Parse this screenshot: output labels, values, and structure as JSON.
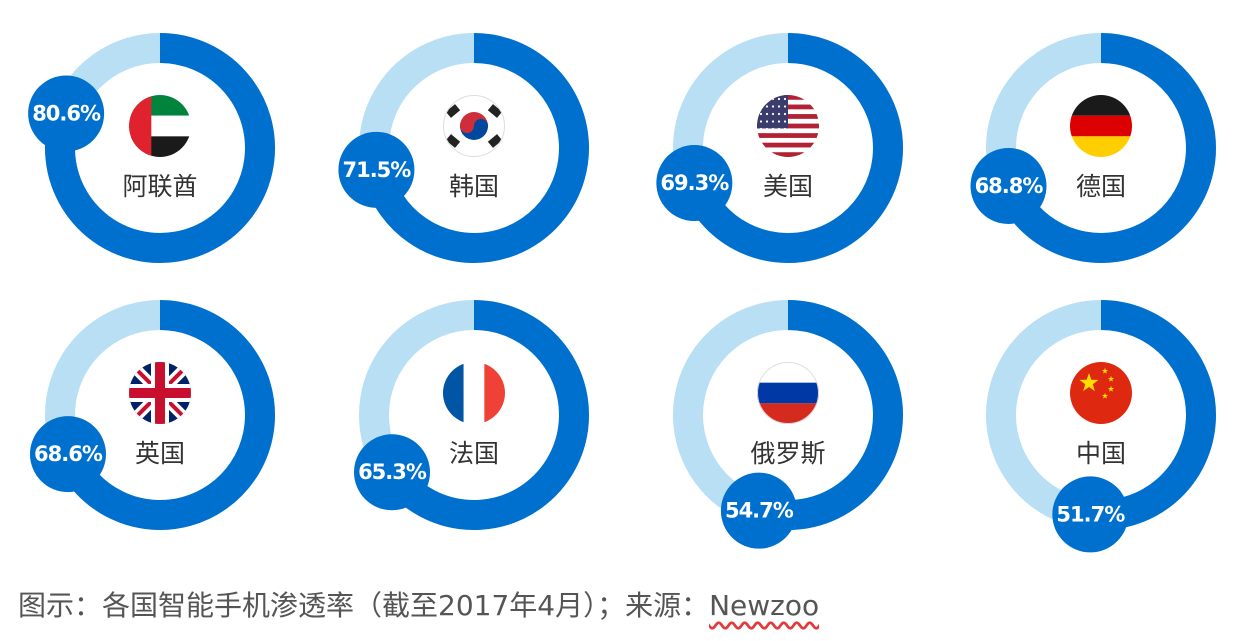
{
  "colors": {
    "accent": "#0070cf",
    "track": "#b9dff5",
    "text": "#333333"
  },
  "chart_data": {
    "type": "donut",
    "unit": "%",
    "categories": [
      "阿联酋",
      "韩国",
      "美国",
      "德国",
      "英国",
      "法国",
      "俄罗斯",
      "中国"
    ],
    "values": [
      80.6,
      71.5,
      69.3,
      68.8,
      68.6,
      65.3,
      54.7,
      51.7
    ],
    "value_labels": [
      "80.6%",
      "71.5%",
      "69.3%",
      "68.8%",
      "68.6%",
      "65.3%",
      "54.7%",
      "51.7%"
    ],
    "flags": [
      "uae-flag-icon",
      "south-korea-flag-icon",
      "usa-flag-icon",
      "germany-flag-icon",
      "uk-flag-icon",
      "france-flag-icon",
      "russia-flag-icon",
      "china-flag-icon"
    ]
  },
  "caption": {
    "prefix": "图示：各国智能手机渗透率（截至2017年4月）；来源：",
    "source": "Newzoo"
  }
}
